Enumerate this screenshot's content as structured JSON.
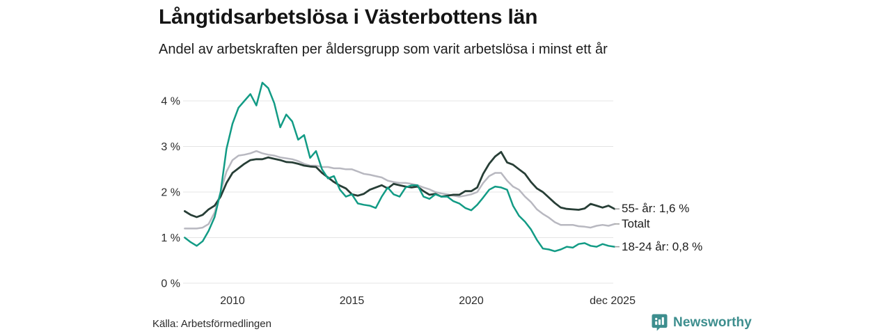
{
  "header": {
    "title": "Långtidsarbetslösa i Västerbottens län",
    "subtitle": "Andel av arbetskraften per åldersgrupp som varit arbetslösa i minst ett år"
  },
  "footer": {
    "source": "Källa: Arbetsförmedlingen",
    "brand_name": "Newsworthy",
    "brand_color": "#3d8e8e",
    "brand_icon": "bar-chart-bubble-icon"
  },
  "chart_data": {
    "type": "line",
    "title": "Långtidsarbetslösa i Västerbottens län",
    "subtitle": "Andel av arbetskraften per åldersgrupp som varit arbetslösa i minst ett år",
    "xlabel": "",
    "ylabel": "",
    "ylim": [
      0,
      4.5
    ],
    "grid": "horizontal",
    "grid_color": "#e4e4e4",
    "tick_dash_color": "#9b9b9b",
    "legend_position": "right-of-line-ends",
    "x_start": 2008.0,
    "x_step": 0.25,
    "x_unit": "year",
    "y_unit": "%",
    "y_ticks": [
      {
        "value": 0,
        "label": "0 %"
      },
      {
        "value": 1,
        "label": "1 %"
      },
      {
        "value": 2,
        "label": "2 %"
      },
      {
        "value": 3,
        "label": "3 %"
      },
      {
        "value": 4,
        "label": "4 %"
      }
    ],
    "x_ticks": [
      {
        "value": 2010,
        "label": "2010"
      },
      {
        "value": 2015,
        "label": "2015"
      },
      {
        "value": 2020,
        "label": "2020"
      },
      {
        "value": 2025.92,
        "label": "dec 2025"
      }
    ],
    "series": [
      {
        "name": "55- år",
        "legend_label": "55- år: 1,6 %",
        "color": "#273e36",
        "stroke_width": 2.8,
        "values": [
          1.58,
          1.5,
          1.45,
          1.5,
          1.62,
          1.7,
          1.9,
          2.2,
          2.42,
          2.52,
          2.62,
          2.7,
          2.72,
          2.72,
          2.76,
          2.73,
          2.7,
          2.66,
          2.65,
          2.62,
          2.58,
          2.56,
          2.55,
          2.42,
          2.32,
          2.22,
          2.14,
          2.08,
          1.95,
          1.92,
          1.96,
          2.05,
          2.1,
          2.15,
          2.08,
          2.18,
          2.15,
          2.12,
          2.1,
          2.12,
          2.02,
          1.94,
          1.96,
          1.9,
          1.92,
          1.94,
          1.94,
          2.02,
          2.02,
          2.1,
          2.4,
          2.62,
          2.78,
          2.88,
          2.65,
          2.6,
          2.5,
          2.4,
          2.22,
          2.08,
          2.0,
          1.88,
          1.76,
          1.66,
          1.63,
          1.62,
          1.61,
          1.64,
          1.74,
          1.7,
          1.66,
          1.7,
          1.63
        ]
      },
      {
        "name": "Totalt",
        "legend_label": "Totalt",
        "color": "#b8b8c0",
        "stroke_width": 2.5,
        "values": [
          1.2,
          1.2,
          1.2,
          1.22,
          1.3,
          1.55,
          2.0,
          2.45,
          2.7,
          2.8,
          2.82,
          2.85,
          2.9,
          2.85,
          2.82,
          2.8,
          2.76,
          2.74,
          2.72,
          2.68,
          2.62,
          2.58,
          2.58,
          2.55,
          2.55,
          2.52,
          2.52,
          2.5,
          2.5,
          2.45,
          2.4,
          2.38,
          2.35,
          2.32,
          2.25,
          2.22,
          2.2,
          2.2,
          2.18,
          2.15,
          2.1,
          2.06,
          2.0,
          1.97,
          1.95,
          1.92,
          1.9,
          1.92,
          1.95,
          2.0,
          2.2,
          2.35,
          2.42,
          2.42,
          2.25,
          2.12,
          2.05,
          1.9,
          1.78,
          1.62,
          1.52,
          1.44,
          1.34,
          1.28,
          1.28,
          1.28,
          1.25,
          1.24,
          1.22,
          1.26,
          1.28,
          1.26,
          1.3
        ]
      },
      {
        "name": "18-24 år",
        "legend_label": "18-24 år: 0,8 %",
        "color": "#129b85",
        "stroke_width": 2.5,
        "values": [
          1.0,
          0.9,
          0.82,
          0.92,
          1.15,
          1.45,
          2.0,
          2.95,
          3.5,
          3.85,
          4.0,
          4.15,
          3.9,
          4.4,
          4.28,
          3.95,
          3.42,
          3.7,
          3.55,
          3.15,
          3.25,
          2.75,
          2.9,
          2.5,
          2.3,
          2.35,
          2.05,
          1.9,
          1.95,
          1.75,
          1.72,
          1.7,
          1.65,
          1.9,
          2.1,
          1.95,
          1.9,
          2.1,
          2.15,
          2.15,
          1.9,
          1.85,
          1.95,
          1.9,
          1.9,
          1.8,
          1.75,
          1.65,
          1.6,
          1.72,
          1.88,
          2.05,
          2.12,
          2.1,
          2.05,
          1.7,
          1.48,
          1.35,
          1.18,
          0.95,
          0.76,
          0.74,
          0.7,
          0.74,
          0.8,
          0.78,
          0.86,
          0.88,
          0.82,
          0.8,
          0.86,
          0.82,
          0.8
        ]
      }
    ]
  }
}
